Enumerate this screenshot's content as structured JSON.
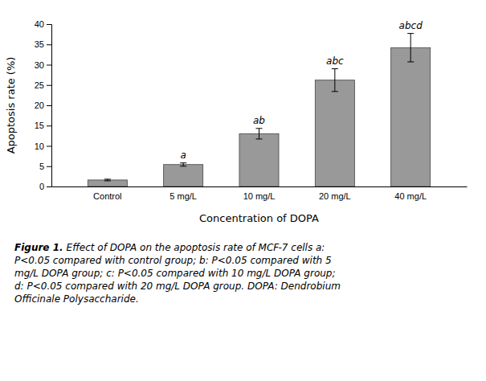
{
  "chart_data": {
    "type": "bar",
    "categories": [
      "Control",
      "5 mg/L",
      "10 mg/L",
      "20 mg/L",
      "40 mg/L"
    ],
    "values": [
      1.6,
      5.4,
      13.0,
      26.2,
      34.2
    ],
    "errors": [
      0.2,
      0.4,
      1.3,
      2.8,
      3.5
    ],
    "color": "#999999",
    "annotations": [
      null,
      "a",
      "ab",
      "abc",
      "abcd"
    ],
    "xlabel": "Concentration of DOPA",
    "ylabel": "Apoptosis rate (%)",
    "ylim": [
      0,
      40
    ],
    "yticks": [
      0,
      5,
      10,
      15,
      20,
      25,
      30,
      35,
      40
    ],
    "grid": false,
    "caption_label": "Figure 1.",
    "caption": [
      "Effect of DOPA on the apoptosis rate of MCF-7 cells a:",
      "P<0.05 compared with control group; b: P<0.05 compared with 5",
      "mg/L DOPA group; c: P<0.05 compared with 10 mg/L DOPA group;",
      "d: P<0.05 compared with 20 mg/L DOPA group. DOPA: Dendrobium",
      "Officinale Polysaccharide."
    ]
  }
}
